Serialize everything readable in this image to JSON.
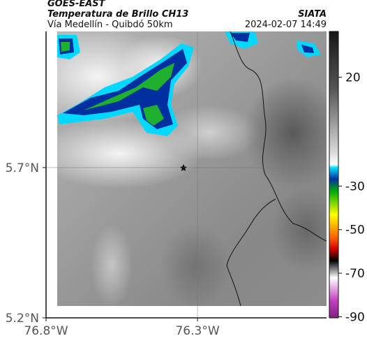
{
  "header": {
    "title": "GOES-EAST",
    "subtitle": "Temperatura de Brillo CH13",
    "region": "Vía Medellín - Quibdó 50km",
    "source": "SIATA",
    "datetime": "2024-02-07 14:49"
  },
  "map": {
    "xlim": [
      -76.8,
      -75.874
    ],
    "ylim": [
      5.2,
      6.153
    ],
    "xticks": [
      {
        "value": -76.8,
        "label": "76.8°W"
      },
      {
        "value": -76.3,
        "label": "76.3°W"
      }
    ],
    "yticks": [
      {
        "value": 5.2,
        "label": "5.2°N"
      },
      {
        "value": 5.7,
        "label": "5.7°N"
      }
    ],
    "grid": true
  },
  "colorbar": {
    "lim": [
      -90.5,
      41
    ],
    "ticks": [
      20,
      -30,
      -50,
      -70,
      -90
    ]
  }
}
